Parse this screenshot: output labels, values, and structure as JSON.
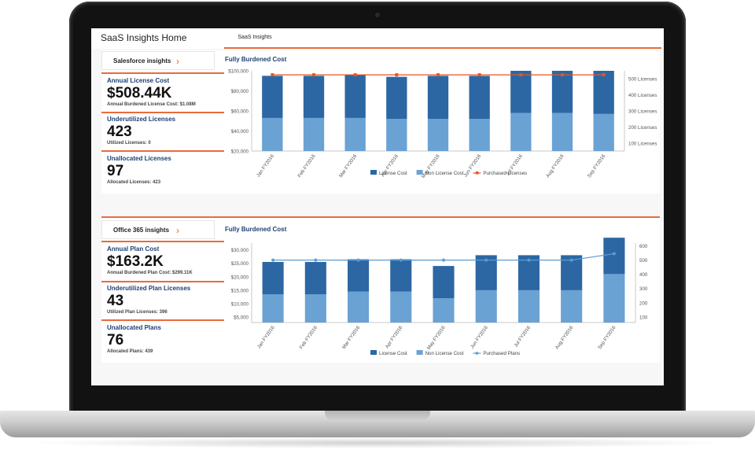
{
  "app": {
    "title": "SaaS Insights Home",
    "tab_label": "SaaS Insights"
  },
  "salesforce": {
    "header_label": "Salesforce insights",
    "kpis": [
      {
        "title": "Annual License Cost",
        "value": "$508.44K",
        "sub": "Annual Burdened License Cost: $1.08M"
      },
      {
        "title": "Underutilized Licenses",
        "value": "423",
        "sub": "Utilized Licenses: 0"
      },
      {
        "title": "Unallocated Licenses",
        "value": "97",
        "sub": "Allocated Licenses: 423"
      }
    ]
  },
  "office365": {
    "header_label": "Office 365 insights",
    "kpis": [
      {
        "title": "Annual Plan Cost",
        "value": "$163.2K",
        "sub": "Annual Burdened Plan Cost: $299.11K"
      },
      {
        "title": "Underutilized Plan Licenses",
        "value": "43",
        "sub": "Utilized Plan Licenses: 396"
      },
      {
        "title": "Unallocated Plans",
        "value": "76",
        "sub": "Allocated Plans: 439"
      }
    ]
  },
  "chart_data": [
    {
      "type": "bar",
      "title": "Fully Burdened Cost",
      "categories": [
        "Jan FY2016",
        "Feb FY2016",
        "Mar FY2016",
        "Apr FY2016",
        "May FY2016",
        "Jun FY2016",
        "Jul FY2016",
        "Aug FY2016",
        "Sep FY2016"
      ],
      "series": [
        {
          "name": "License Cost",
          "values": [
            42000,
            42000,
            43000,
            42000,
            43000,
            43000,
            42000,
            42000,
            43000
          ],
          "color": "#2c67a3"
        },
        {
          "name": "Non License Cost",
          "values": [
            53000,
            53000,
            53000,
            52000,
            52000,
            52000,
            58000,
            58000,
            57000
          ],
          "color": "#6aa2d3"
        },
        {
          "name": "Purchased Licenses",
          "type": "line",
          "axis": "right",
          "values": [
            525,
            525,
            525,
            525,
            525,
            525,
            525,
            525,
            525
          ],
          "color": "#e9541f"
        }
      ],
      "stacked": true,
      "ylim": [
        20000,
        100000
      ],
      "yticks": [
        20000,
        40000,
        60000,
        80000,
        100000
      ],
      "ytick_labels": [
        "$20,000",
        "$40,000",
        "$60,000",
        "$80,000",
        "$100,000"
      ],
      "y2lim": [
        50,
        550
      ],
      "y2ticks": [
        100,
        200,
        300,
        400,
        500
      ],
      "y2tick_labels": [
        "100 Licenses",
        "200 Licenses",
        "300 Licenses",
        "400 Licenses",
        "500 Licenses"
      ],
      "legend": "bottom"
    },
    {
      "type": "bar",
      "title": "Fully Burdened Cost",
      "categories": [
        "Jan FY2016",
        "Feb FY2016",
        "Mar FY2016",
        "Apr FY2016",
        "May FY2016",
        "Jun FY2016",
        "Jul FY2016",
        "Aug FY2016",
        "Sep FY2016"
      ],
      "series": [
        {
          "name": "License Cost",
          "values": [
            12000,
            12000,
            12000,
            12000,
            12000,
            13000,
            13000,
            13000,
            13500
          ],
          "color": "#2c67a3"
        },
        {
          "name": "Non License Cost",
          "values": [
            13500,
            13500,
            14500,
            14500,
            12000,
            15000,
            15000,
            15000,
            21000
          ],
          "color": "#6aa2d3"
        },
        {
          "name": "Purchased Plans",
          "type": "line",
          "axis": "right",
          "values": [
            500,
            500,
            500,
            500,
            500,
            500,
            500,
            500,
            545
          ],
          "color": "#5b9bd5"
        }
      ],
      "stacked": true,
      "ylim": [
        3000,
        32500
      ],
      "yticks": [
        5000,
        10000,
        15000,
        20000,
        25000,
        30000
      ],
      "ytick_labels": [
        "$5,000",
        "$10,000",
        "$15,000",
        "$20,000",
        "$25,000",
        "$30,000"
      ],
      "y2lim": [
        60,
        620
      ],
      "y2ticks": [
        100,
        200,
        300,
        400,
        500,
        600
      ],
      "y2tick_labels": [
        "100",
        "200",
        "300",
        "400",
        "500",
        "600"
      ],
      "legend": "bottom"
    }
  ]
}
